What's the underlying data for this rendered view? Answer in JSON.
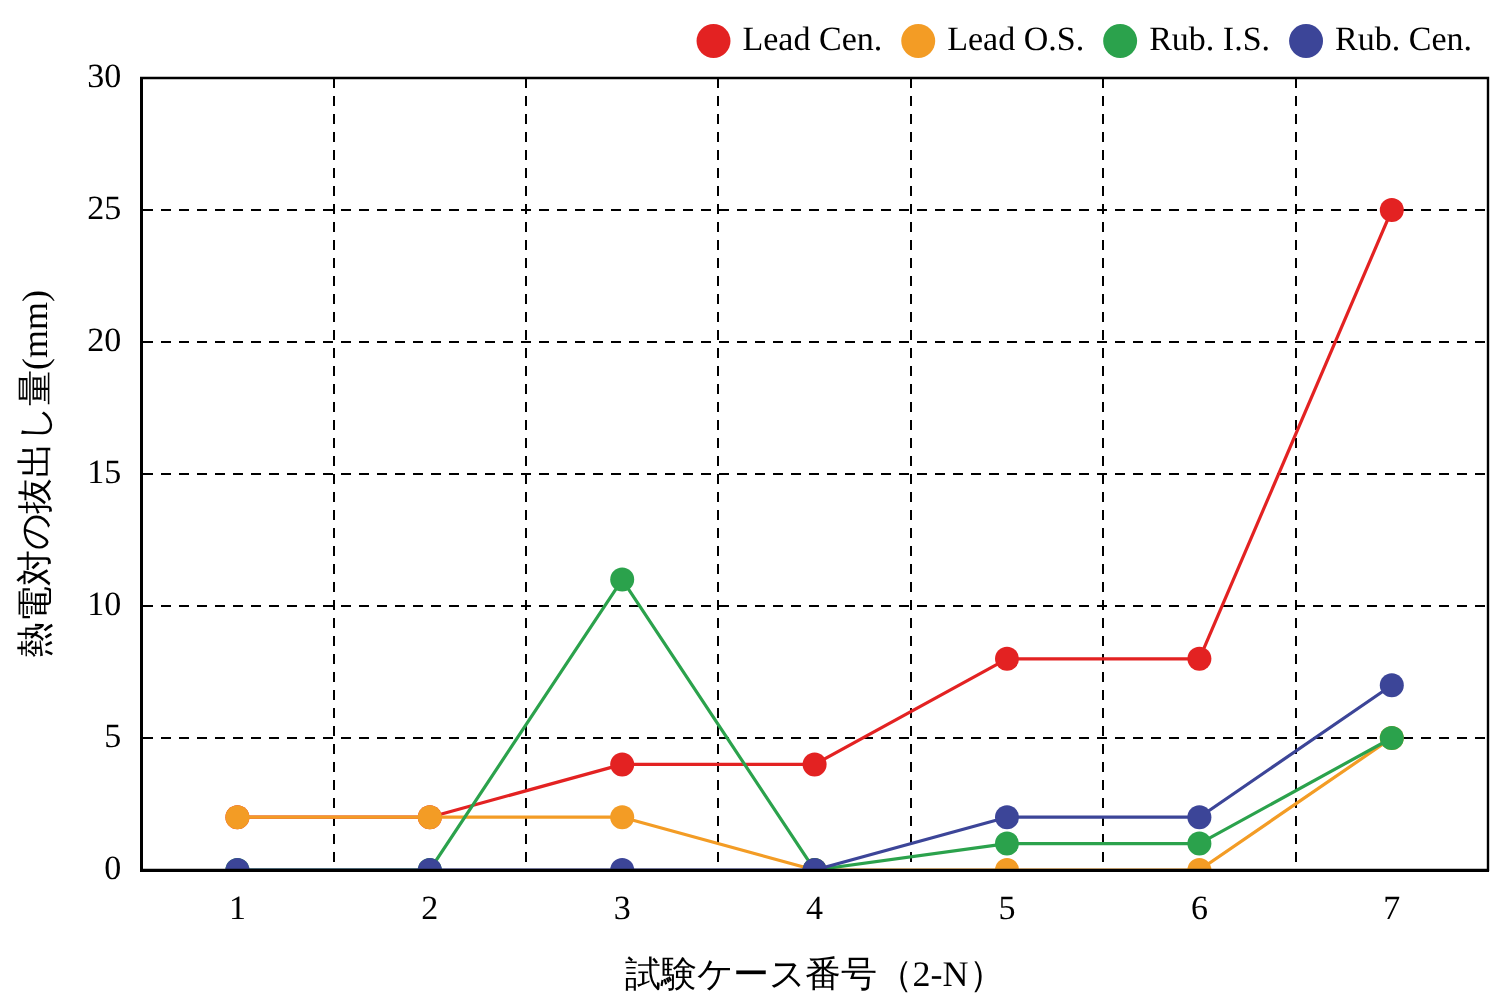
{
  "chart_data": {
    "type": "line",
    "xlabel": "試験ケース番号（2-N）",
    "ylabel": "熱電対の抜出し量(mm)",
    "categories": [
      "1",
      "2",
      "3",
      "4",
      "5",
      "6",
      "7"
    ],
    "series": [
      {
        "name": "Lead Cen.",
        "color": "#e32222",
        "values": [
          2,
          2,
          4,
          4,
          8,
          8,
          25
        ]
      },
      {
        "name": "Lead O.S.",
        "color": "#f39c25",
        "values": [
          2,
          2,
          2,
          0,
          0,
          0,
          5
        ]
      },
      {
        "name": "Rub. I.S.",
        "color": "#2ba24c",
        "values": [
          0,
          0,
          11,
          0,
          1,
          1,
          5
        ]
      },
      {
        "name": "Rub. Cen.",
        "color": "#3c4598",
        "values": [
          0,
          0,
          0,
          0,
          2,
          2,
          7
        ]
      }
    ],
    "ylim": [
      0,
      30
    ],
    "yticks": [
      0,
      5,
      10,
      15,
      20,
      25,
      30
    ],
    "grid": true,
    "legend": "top",
    "marker": "circle",
    "line_style": "solid"
  }
}
